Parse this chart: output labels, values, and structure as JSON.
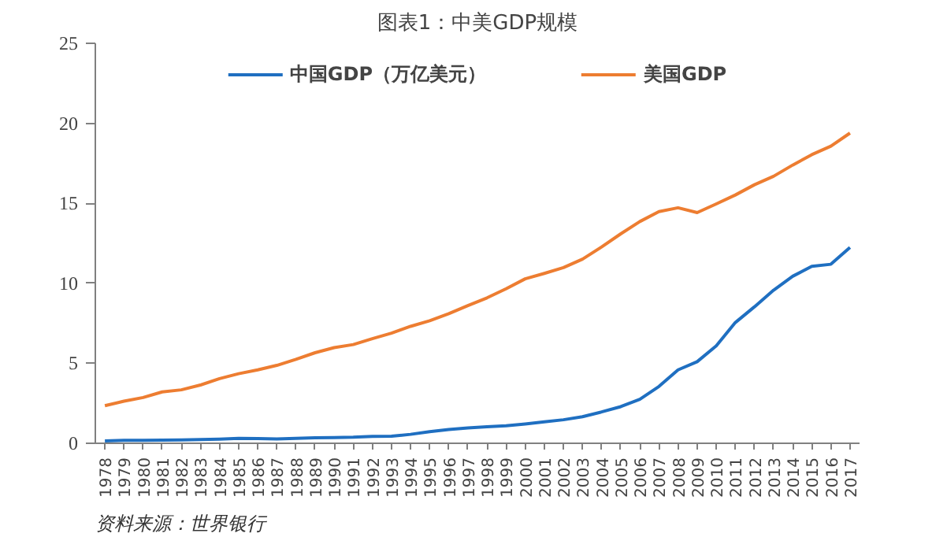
{
  "chart_data": {
    "type": "line",
    "title": "图表1：中美GDP规模",
    "categories": [
      "1978",
      "1979",
      "1980",
      "1981",
      "1982",
      "1983",
      "1984",
      "1985",
      "1986",
      "1987",
      "1988",
      "1989",
      "1990",
      "1991",
      "1992",
      "1993",
      "1994",
      "1995",
      "1996",
      "1997",
      "1998",
      "1999",
      "2000",
      "2001",
      "2002",
      "2003",
      "2004",
      "2005",
      "2006",
      "2007",
      "2008",
      "2009",
      "2010",
      "2011",
      "2012",
      "2013",
      "2014",
      "2015",
      "2016",
      "2017"
    ],
    "series": [
      {
        "name": "中国GDP（万亿美元）",
        "color": "#1f6fc1",
        "values": [
          0.15,
          0.18,
          0.19,
          0.2,
          0.21,
          0.23,
          0.26,
          0.31,
          0.3,
          0.27,
          0.31,
          0.35,
          0.36,
          0.38,
          0.43,
          0.44,
          0.56,
          0.73,
          0.86,
          0.96,
          1.03,
          1.09,
          1.21,
          1.34,
          1.47,
          1.66,
          1.96,
          2.29,
          2.75,
          3.55,
          4.59,
          5.1,
          6.09,
          7.55,
          8.53,
          9.57,
          10.44,
          11.06,
          11.19,
          12.24
        ]
      },
      {
        "name": "美国GDP",
        "color": "#ed7d31",
        "values": [
          2.35,
          2.63,
          2.86,
          3.21,
          3.34,
          3.64,
          4.04,
          4.35,
          4.59,
          4.87,
          5.25,
          5.66,
          5.98,
          6.17,
          6.54,
          6.88,
          7.31,
          7.66,
          8.1,
          8.61,
          9.09,
          9.66,
          10.28,
          10.62,
          10.98,
          11.51,
          12.27,
          13.09,
          13.86,
          14.48,
          14.72,
          14.42,
          14.96,
          15.52,
          16.16,
          16.69,
          17.39,
          18.04,
          18.57,
          19.39
        ]
      }
    ],
    "ylim": [
      0,
      25
    ],
    "yticks": [
      0,
      5,
      10,
      15,
      20,
      25
    ],
    "grid": false,
    "legend": "top",
    "marker": "none",
    "line_style": "solid",
    "annotations": [
      "资料来源：世界银行"
    ]
  }
}
